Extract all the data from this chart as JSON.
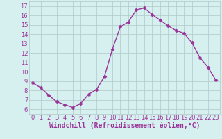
{
  "x": [
    0,
    1,
    2,
    3,
    4,
    5,
    6,
    7,
    8,
    9,
    10,
    11,
    12,
    13,
    14,
    15,
    16,
    17,
    18,
    19,
    20,
    21,
    22,
    23
  ],
  "y": [
    8.8,
    8.3,
    7.5,
    6.8,
    6.5,
    6.2,
    6.6,
    7.6,
    8.1,
    9.5,
    12.4,
    14.8,
    15.3,
    16.6,
    16.8,
    16.1,
    15.5,
    14.9,
    14.4,
    14.1,
    13.1,
    11.5,
    10.5,
    9.1
  ],
  "line_color": "#993399",
  "marker": "D",
  "marker_size": 2.5,
  "bg_color": "#d6f0ef",
  "grid_color": "#b0c8c8",
  "xlabel": "Windchill (Refroidissement éolien,°C)",
  "xlim": [
    -0.5,
    23.5
  ],
  "ylim": [
    5.5,
    17.5
  ],
  "yticks": [
    6,
    7,
    8,
    9,
    10,
    11,
    12,
    13,
    14,
    15,
    16,
    17
  ],
  "xticks": [
    0,
    1,
    2,
    3,
    4,
    5,
    6,
    7,
    8,
    9,
    10,
    11,
    12,
    13,
    14,
    15,
    16,
    17,
    18,
    19,
    20,
    21,
    22,
    23
  ],
  "tick_fontsize": 6,
  "xlabel_fontsize": 7,
  "line_width": 1.0
}
